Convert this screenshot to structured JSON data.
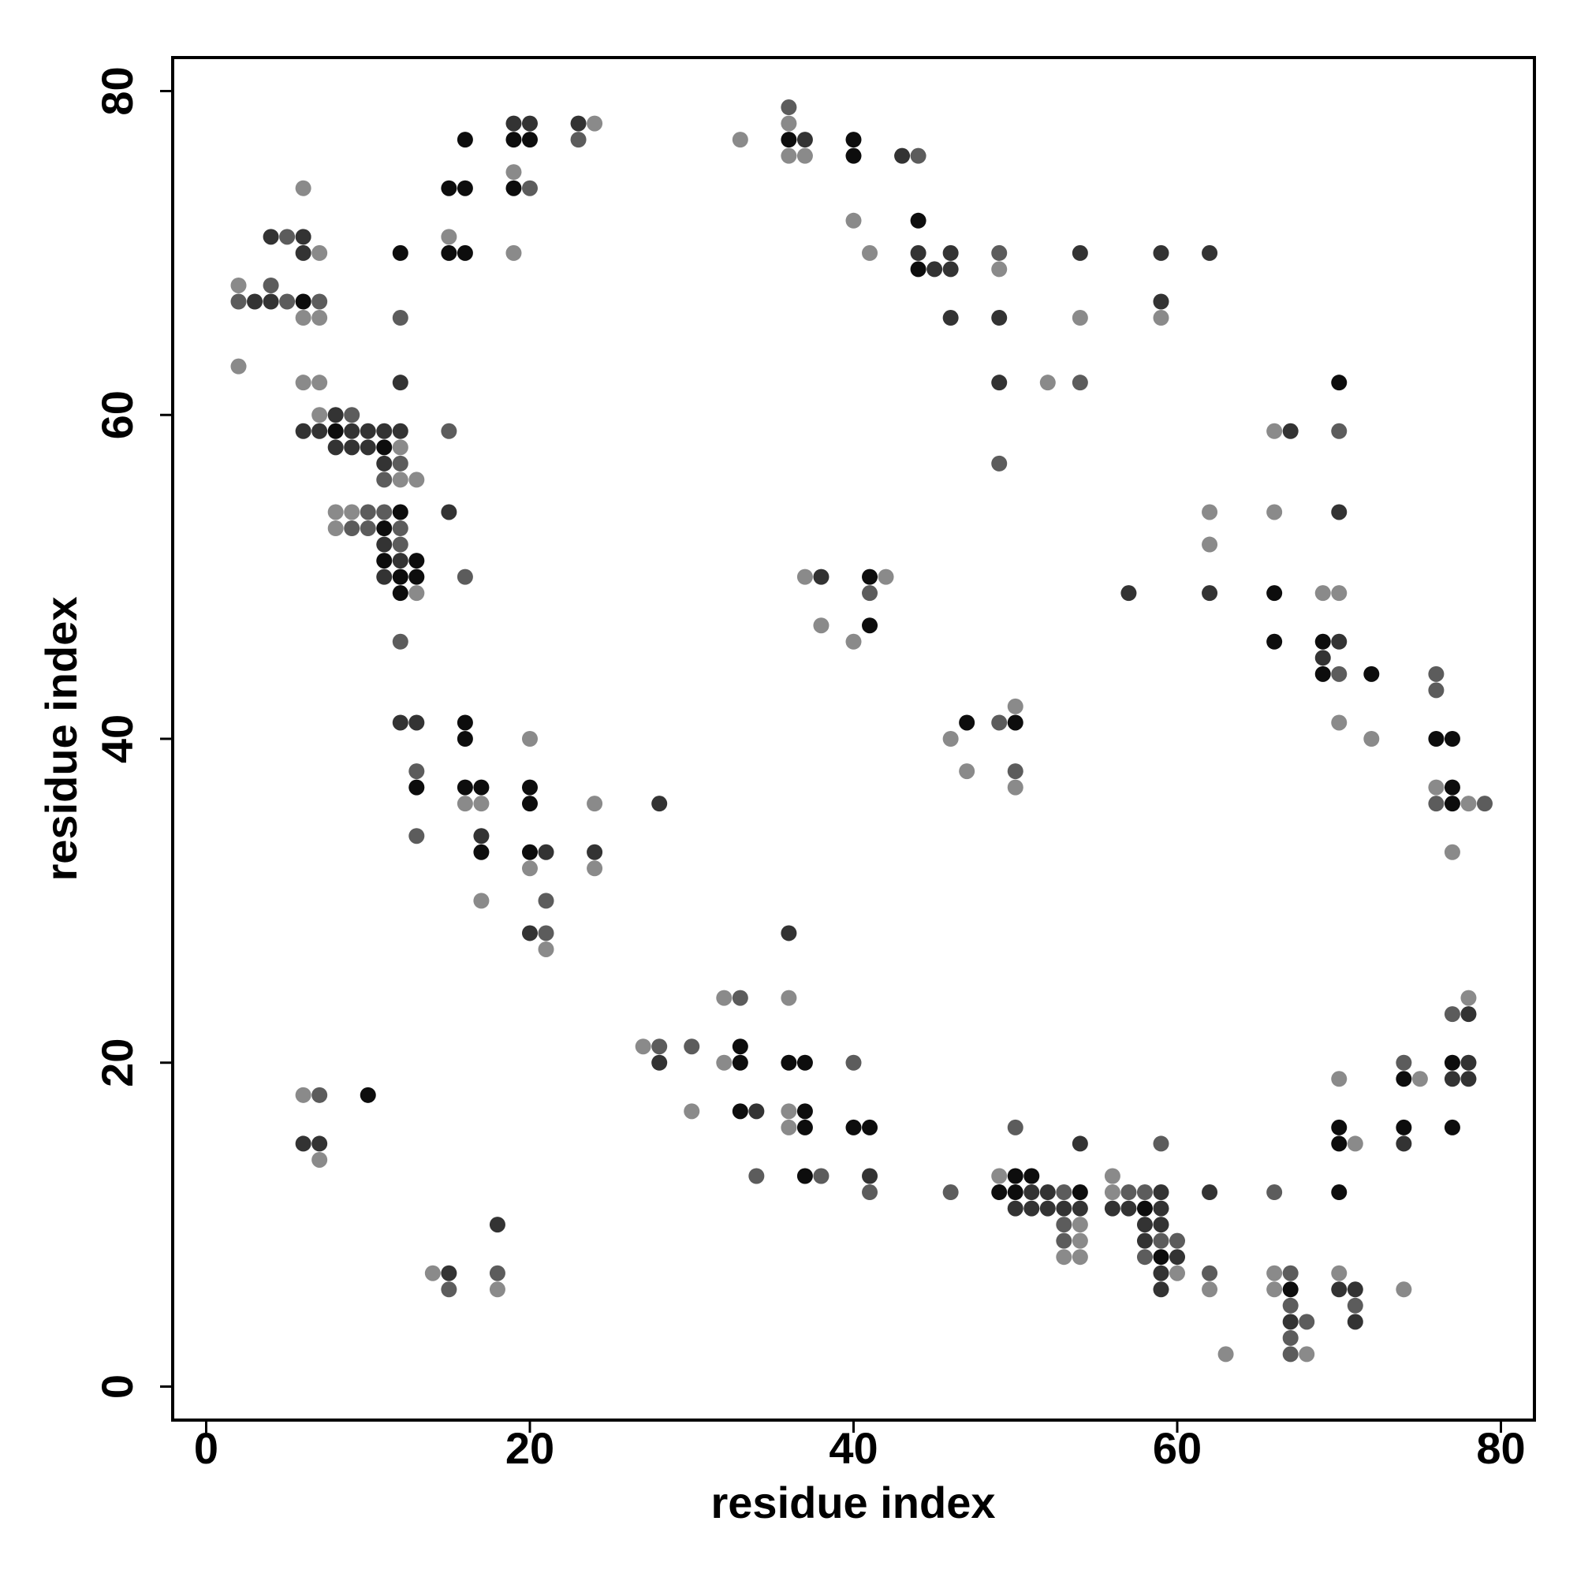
{
  "chart_data": {
    "type": "scatter",
    "x_label": "residue index",
    "y_label": "residue index",
    "xlim": [
      -2.07,
      82.07
    ],
    "ylim": [
      -2.07,
      82.07
    ],
    "xticks": [
      0,
      20,
      40,
      60,
      80
    ],
    "yticks": [
      0,
      20,
      40,
      60,
      80
    ],
    "grid": false,
    "series": [
      {
        "color": "#0d0d0d",
        "x": [
          16,
          19,
          20,
          36,
          40,
          40,
          15,
          16,
          19,
          44,
          12,
          15,
          16,
          44,
          6,
          70,
          8,
          11,
          12,
          11,
          11,
          13,
          12,
          13,
          41,
          12,
          66,
          41,
          66,
          69,
          69,
          72,
          16,
          47,
          50,
          16,
          76,
          77,
          13,
          16,
          17,
          20,
          77,
          20,
          77,
          17,
          20,
          33,
          33,
          36,
          37,
          77,
          74,
          10,
          33,
          37,
          37,
          40,
          41,
          70,
          74,
          77,
          70,
          37,
          50,
          51,
          49,
          50,
          54,
          70,
          58,
          59,
          67
        ],
        "y": [
          77,
          77,
          77,
          77,
          77,
          76,
          74,
          74,
          74,
          72,
          70,
          70,
          70,
          69,
          67,
          62,
          59,
          58,
          54,
          53,
          51,
          51,
          50,
          50,
          50,
          49,
          49,
          47,
          46,
          46,
          44,
          44,
          41,
          41,
          41,
          40,
          40,
          40,
          37,
          37,
          37,
          37,
          37,
          36,
          36,
          33,
          33,
          21,
          20,
          20,
          20,
          20,
          19,
          18,
          17,
          17,
          16,
          16,
          16,
          16,
          16,
          16,
          15,
          13,
          13,
          13,
          12,
          12,
          12,
          12,
          11,
          8,
          6
        ]
      },
      {
        "color": "#333333",
        "x": [
          19,
          20,
          23,
          37,
          43,
          4,
          6,
          6,
          44,
          46,
          54,
          59,
          62,
          45,
          46,
          3,
          4,
          59,
          46,
          49,
          12,
          49,
          8,
          6,
          7,
          9,
          10,
          11,
          12,
          67,
          8,
          9,
          10,
          11,
          15,
          70,
          11,
          12,
          11,
          38,
          57,
          62,
          70,
          69,
          12,
          13,
          28,
          17,
          21,
          24,
          20,
          36,
          78,
          28,
          78,
          77,
          78,
          34,
          6,
          7,
          54,
          74,
          41,
          51,
          52,
          59,
          62,
          50,
          51,
          52,
          53,
          54,
          56,
          57,
          59,
          18,
          58,
          59,
          58,
          60,
          15,
          59,
          59,
          70,
          71,
          67,
          71
        ],
        "y": [
          78,
          78,
          78,
          77,
          76,
          71,
          71,
          70,
          70,
          70,
          70,
          70,
          70,
          69,
          69,
          67,
          67,
          67,
          66,
          66,
          62,
          62,
          60,
          59,
          59,
          59,
          59,
          59,
          59,
          59,
          58,
          58,
          58,
          57,
          54,
          54,
          52,
          51,
          50,
          50,
          49,
          49,
          46,
          45,
          41,
          41,
          36,
          34,
          33,
          33,
          28,
          28,
          23,
          20,
          20,
          19,
          19,
          17,
          15,
          15,
          15,
          15,
          13,
          12,
          12,
          12,
          12,
          11,
          11,
          11,
          11,
          11,
          11,
          11,
          11,
          10,
          10,
          10,
          9,
          8,
          7,
          7,
          6,
          6,
          6,
          4,
          4
        ]
      },
      {
        "color": "#5c5c5c",
        "x": [
          36,
          23,
          44,
          20,
          5,
          49,
          4,
          2,
          5,
          7,
          12,
          54,
          9,
          15,
          70,
          12,
          49,
          11,
          10,
          11,
          9,
          10,
          12,
          12,
          16,
          41,
          12,
          70,
          76,
          76,
          49,
          13,
          50,
          76,
          79,
          13,
          21,
          21,
          33,
          77,
          28,
          30,
          40,
          74,
          7,
          50,
          59,
          34,
          38,
          41,
          46,
          53,
          57,
          58,
          66,
          53,
          53,
          59,
          60,
          58,
          18,
          62,
          67,
          15,
          67,
          71,
          68,
          67,
          67
        ],
        "y": [
          79,
          77,
          76,
          74,
          71,
          70,
          68,
          67,
          67,
          67,
          66,
          62,
          60,
          59,
          59,
          57,
          57,
          56,
          54,
          54,
          53,
          53,
          53,
          52,
          50,
          49,
          46,
          44,
          44,
          43,
          41,
          38,
          38,
          36,
          36,
          34,
          30,
          28,
          24,
          23,
          21,
          21,
          20,
          20,
          18,
          16,
          15,
          13,
          13,
          12,
          12,
          12,
          12,
          12,
          12,
          10,
          9,
          9,
          9,
          8,
          7,
          7,
          7,
          6,
          5,
          5,
          4,
          3,
          2
        ]
      },
      {
        "color": "#8a8a8a",
        "x": [
          24,
          36,
          33,
          36,
          37,
          19,
          6,
          40,
          15,
          7,
          19,
          41,
          49,
          2,
          6,
          7,
          54,
          59,
          2,
          6,
          7,
          52,
          7,
          66,
          12,
          12,
          13,
          8,
          9,
          62,
          66,
          8,
          62,
          37,
          42,
          13,
          69,
          70,
          38,
          40,
          50,
          70,
          20,
          46,
          72,
          47,
          50,
          76,
          16,
          17,
          24,
          78,
          77,
          20,
          24,
          17,
          21,
          32,
          36,
          78,
          27,
          32,
          70,
          75,
          6,
          30,
          36,
          36,
          71,
          7,
          49,
          56,
          56,
          54,
          54,
          53,
          54,
          14,
          60,
          66,
          70,
          18,
          62,
          66,
          74,
          63,
          68
        ],
        "y": [
          78,
          78,
          77,
          76,
          76,
          75,
          74,
          72,
          71,
          70,
          70,
          70,
          69,
          68,
          66,
          66,
          66,
          66,
          63,
          62,
          62,
          62,
          60,
          59,
          58,
          56,
          56,
          54,
          54,
          54,
          54,
          53,
          52,
          50,
          50,
          49,
          49,
          49,
          47,
          46,
          42,
          41,
          40,
          40,
          40,
          38,
          37,
          37,
          36,
          36,
          36,
          36,
          33,
          32,
          32,
          30,
          27,
          24,
          24,
          24,
          21,
          20,
          19,
          19,
          18,
          17,
          17,
          16,
          15,
          14,
          13,
          13,
          12,
          10,
          9,
          8,
          8,
          7,
          7,
          7,
          7,
          6,
          6,
          6,
          6,
          2,
          2
        ]
      }
    ]
  }
}
